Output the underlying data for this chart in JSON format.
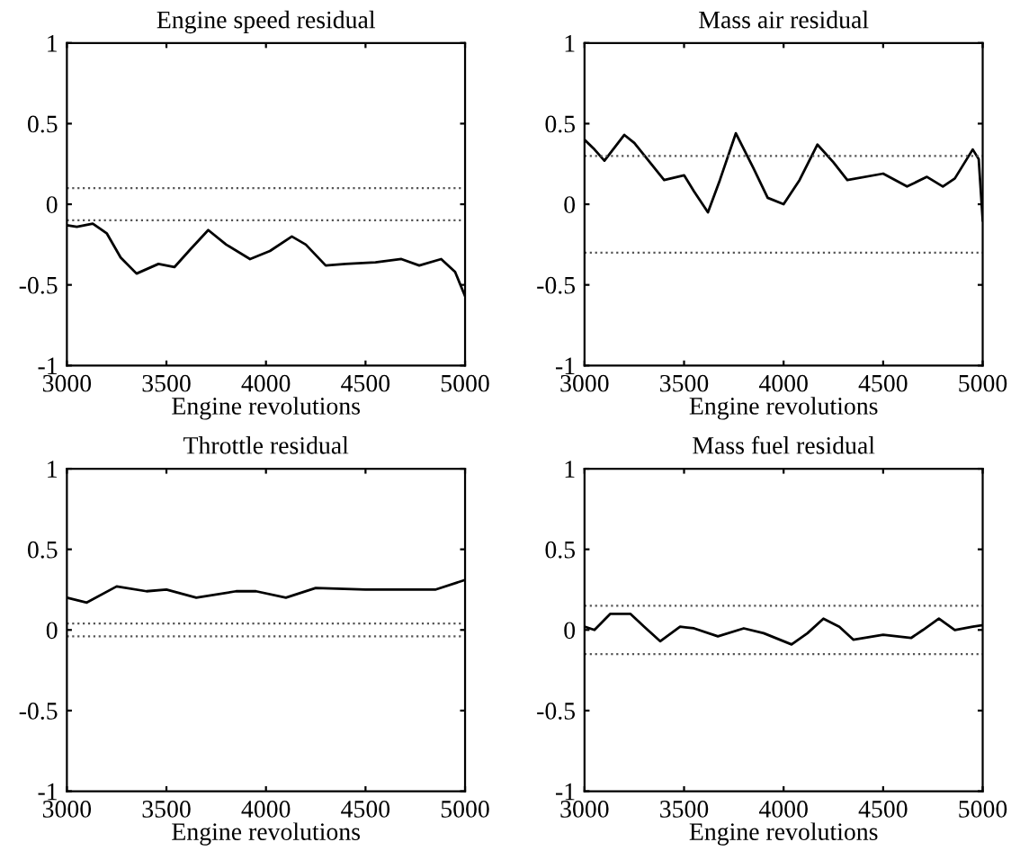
{
  "chart_data": [
    {
      "type": "line",
      "title": "Engine speed residual",
      "xlabel": "Engine revolutions",
      "xlim": [
        3000,
        5000
      ],
      "xticks": [
        3000,
        3500,
        4000,
        4500,
        5000
      ],
      "ylim": [
        -1,
        1
      ],
      "yticks": [
        -1,
        -0.5,
        0,
        0.5,
        1
      ],
      "grid": false,
      "legend": false,
      "line_style": "solid",
      "x": [
        3000,
        3050,
        3130,
        3200,
        3270,
        3350,
        3460,
        3540,
        3620,
        3710,
        3800,
        3920,
        4020,
        4130,
        4200,
        4300,
        4400,
        4550,
        4680,
        4770,
        4880,
        4950,
        5000
      ],
      "series": [
        {
          "color": "#000000",
          "values": [
            -0.13,
            -0.14,
            -0.12,
            -0.18,
            -0.33,
            -0.43,
            -0.37,
            -0.39,
            -0.28,
            -0.16,
            -0.25,
            -0.34,
            -0.29,
            -0.2,
            -0.25,
            -0.38,
            -0.37,
            -0.36,
            -0.34,
            -0.38,
            -0.34,
            -0.42,
            -0.57
          ]
        }
      ],
      "ref_lines": [
        {
          "axis": "y",
          "value": 0.1,
          "color": "#555555",
          "line_style": "dotted"
        },
        {
          "axis": "y",
          "value": -0.1,
          "color": "#555555",
          "line_style": "dotted"
        }
      ]
    },
    {
      "type": "line",
      "title": "Mass air residual",
      "xlabel": "Engine revolutions",
      "xlim": [
        3000,
        5000
      ],
      "xticks": [
        3000,
        3500,
        4000,
        4500,
        5000
      ],
      "ylim": [
        -1,
        1
      ],
      "yticks": [
        -1,
        -0.5,
        0,
        0.5,
        1
      ],
      "grid": false,
      "legend": false,
      "line_style": "solid",
      "x": [
        3000,
        3050,
        3100,
        3200,
        3250,
        3400,
        3500,
        3550,
        3620,
        3680,
        3760,
        3850,
        3920,
        4000,
        4080,
        4170,
        4250,
        4320,
        4500,
        4620,
        4720,
        4800,
        4860,
        4950,
        4980,
        5000
      ],
      "series": [
        {
          "color": "#000000",
          "values": [
            0.4,
            0.34,
            0.27,
            0.43,
            0.38,
            0.15,
            0.18,
            0.08,
            -0.05,
            0.15,
            0.44,
            0.22,
            0.04,
            0.0,
            0.15,
            0.37,
            0.26,
            0.15,
            0.19,
            0.11,
            0.17,
            0.11,
            0.16,
            0.34,
            0.28,
            -0.1
          ]
        }
      ],
      "ref_lines": [
        {
          "axis": "y",
          "value": 0.3,
          "color": "#555555",
          "line_style": "dotted"
        },
        {
          "axis": "y",
          "value": -0.3,
          "color": "#555555",
          "line_style": "dotted"
        }
      ]
    },
    {
      "type": "line",
      "title": "Throttle residual",
      "xlabel": "Engine revolutions",
      "xlim": [
        3000,
        5000
      ],
      "xticks": [
        3000,
        3500,
        4000,
        4500,
        5000
      ],
      "ylim": [
        -1,
        1
      ],
      "yticks": [
        -1,
        -0.5,
        0,
        0.5,
        1
      ],
      "grid": false,
      "legend": false,
      "line_style": "solid",
      "x": [
        3000,
        3100,
        3250,
        3400,
        3500,
        3650,
        3850,
        3950,
        4100,
        4250,
        4500,
        4650,
        4850,
        5000
      ],
      "series": [
        {
          "color": "#000000",
          "values": [
            0.2,
            0.17,
            0.27,
            0.24,
            0.25,
            0.2,
            0.24,
            0.24,
            0.2,
            0.26,
            0.25,
            0.25,
            0.25,
            0.31
          ]
        }
      ],
      "ref_lines": [
        {
          "axis": "y",
          "value": 0.04,
          "color": "#555555",
          "line_style": "dotted"
        },
        {
          "axis": "y",
          "value": -0.04,
          "color": "#555555",
          "line_style": "dotted"
        }
      ]
    },
    {
      "type": "line",
      "title": "Mass fuel residual",
      "xlabel": "Engine revolutions",
      "xlim": [
        3000,
        5000
      ],
      "xticks": [
        3000,
        3500,
        4000,
        4500,
        5000
      ],
      "ylim": [
        -1,
        1
      ],
      "yticks": [
        -1,
        -0.5,
        0,
        0.5,
        1
      ],
      "grid": false,
      "legend": false,
      "line_style": "solid",
      "x": [
        3000,
        3050,
        3130,
        3230,
        3300,
        3380,
        3480,
        3550,
        3670,
        3800,
        3900,
        4040,
        4120,
        4200,
        4280,
        4350,
        4500,
        4640,
        4700,
        4780,
        4860,
        4950,
        5000
      ],
      "series": [
        {
          "color": "#000000",
          "values": [
            0.02,
            0.0,
            0.1,
            0.1,
            0.02,
            -0.07,
            0.02,
            0.01,
            -0.04,
            0.01,
            -0.02,
            -0.09,
            -0.02,
            0.07,
            0.02,
            -0.06,
            -0.03,
            -0.05,
            0.0,
            0.07,
            0.0,
            0.02,
            0.03
          ]
        }
      ],
      "ref_lines": [
        {
          "axis": "y",
          "value": 0.15,
          "color": "#555555",
          "line_style": "dotted"
        },
        {
          "axis": "y",
          "value": -0.15,
          "color": "#555555",
          "line_style": "dotted"
        }
      ]
    }
  ]
}
